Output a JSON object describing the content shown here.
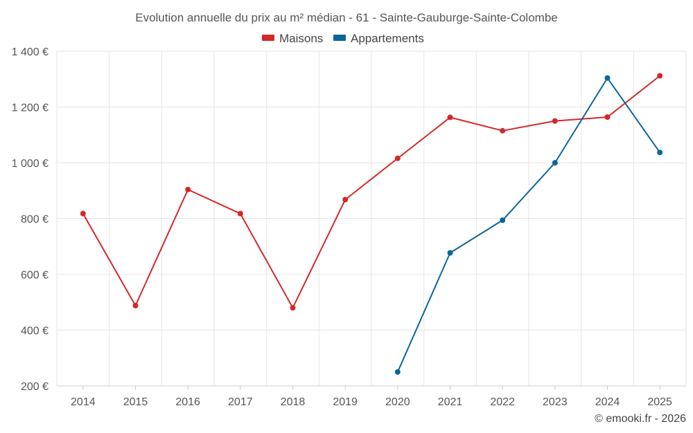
{
  "chart_data": {
    "type": "line",
    "title": "Evolution annuelle du prix au m² médian - 61 - Sainte-Gauburge-Sainte-Colombe",
    "categories": [
      "2014",
      "2015",
      "2016",
      "2017",
      "2018",
      "2019",
      "2020",
      "2021",
      "2022",
      "2023",
      "2024",
      "2025"
    ],
    "series": [
      {
        "name": "Maisons",
        "color": "#d62728",
        "values": [
          818,
          488,
          904,
          818,
          480,
          868,
          1016,
          1163,
          1115,
          1150,
          1164,
          1312
        ]
      },
      {
        "name": "Appartements",
        "color": "#0a6699",
        "values": [
          null,
          null,
          null,
          null,
          null,
          null,
          250,
          677,
          794,
          1000,
          1304,
          1037
        ]
      }
    ],
    "ylim": [
      200,
      1400
    ],
    "yticks": [
      200,
      400,
      600,
      800,
      1000,
      1200,
      1400
    ],
    "ytick_labels": [
      "200 €",
      "400 €",
      "600 €",
      "800 €",
      "1 000 €",
      "1 200 €",
      "1 400 €"
    ],
    "xlabel": "",
    "ylabel": "",
    "grid": true,
    "legend_position": "top-center"
  },
  "credit": "© emooki.fr - 2026"
}
